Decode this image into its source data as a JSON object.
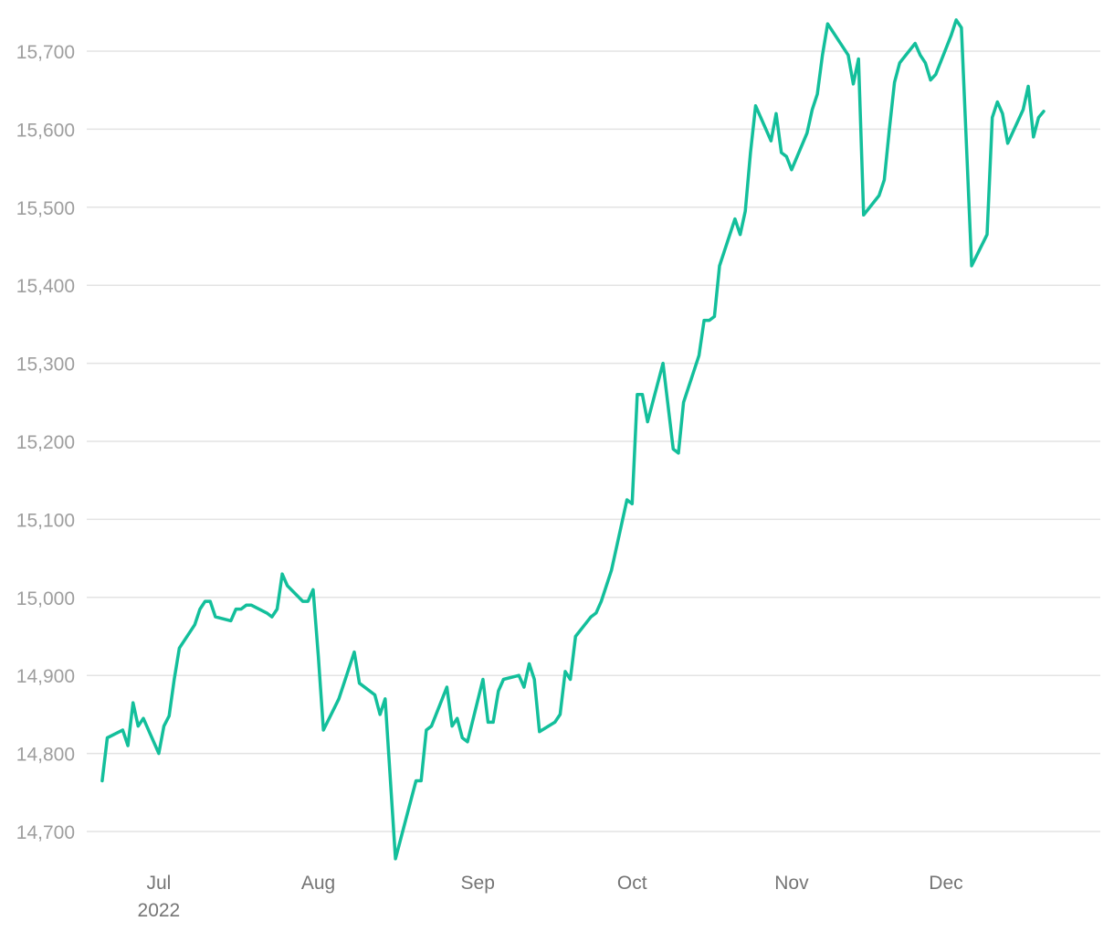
{
  "chart_data": {
    "type": "line",
    "title": "",
    "xlabel": "",
    "ylabel": "",
    "x_ticks": [
      {
        "date": "2022-07-01",
        "label": "Jul",
        "sublabel": "2022"
      },
      {
        "date": "2022-08-01",
        "label": "Aug",
        "sublabel": ""
      },
      {
        "date": "2022-09-01",
        "label": "Sep",
        "sublabel": ""
      },
      {
        "date": "2022-10-01",
        "label": "Oct",
        "sublabel": ""
      },
      {
        "date": "2022-11-01",
        "label": "Nov",
        "sublabel": ""
      },
      {
        "date": "2022-12-01",
        "label": "Dec",
        "sublabel": ""
      }
    ],
    "y_ticks": [
      14700,
      14800,
      14900,
      15000,
      15100,
      15200,
      15300,
      15400,
      15500,
      15600,
      15700
    ],
    "y_tick_labels": [
      "14,700",
      "14,800",
      "14,900",
      "15,000",
      "15,100",
      "15,200",
      "15,300",
      "15,400",
      "15,500",
      "15,600",
      "15,700"
    ],
    "xlim": [
      "2022-06-17",
      "2022-12-31"
    ],
    "ylim": [
      14650,
      15750
    ],
    "grid": true,
    "legend": "none",
    "colors": {
      "line": "#13bf9b"
    },
    "series": [
      {
        "points": [
          [
            "2022-06-20",
            14765
          ],
          [
            "2022-06-21",
            14820
          ],
          [
            "2022-06-24",
            14830
          ],
          [
            "2022-06-25",
            14810
          ],
          [
            "2022-06-26",
            14865
          ],
          [
            "2022-06-27",
            14835
          ],
          [
            "2022-06-28",
            14845
          ],
          [
            "2022-07-01",
            14800
          ],
          [
            "2022-07-02",
            14835
          ],
          [
            "2022-07-03",
            14848
          ],
          [
            "2022-07-04",
            14895
          ],
          [
            "2022-07-05",
            14935
          ],
          [
            "2022-07-08",
            14965
          ],
          [
            "2022-07-09",
            14985
          ],
          [
            "2022-07-10",
            14995
          ],
          [
            "2022-07-11",
            14995
          ],
          [
            "2022-07-12",
            14975
          ],
          [
            "2022-07-15",
            14970
          ],
          [
            "2022-07-16",
            14985
          ],
          [
            "2022-07-17",
            14985
          ],
          [
            "2022-07-18",
            14990
          ],
          [
            "2022-07-19",
            14990
          ],
          [
            "2022-07-22",
            14980
          ],
          [
            "2022-07-23",
            14975
          ],
          [
            "2022-07-24",
            14985
          ],
          [
            "2022-07-25",
            15030
          ],
          [
            "2022-07-26",
            15015
          ],
          [
            "2022-07-29",
            14995
          ],
          [
            "2022-07-30",
            14995
          ],
          [
            "2022-07-31",
            15010
          ],
          [
            "2022-08-01",
            14925
          ],
          [
            "2022-08-02",
            14830
          ],
          [
            "2022-08-05",
            14870
          ],
          [
            "2022-08-08",
            14930
          ],
          [
            "2022-08-09",
            14890
          ],
          [
            "2022-08-12",
            14875
          ],
          [
            "2022-08-13",
            14850
          ],
          [
            "2022-08-14",
            14870
          ],
          [
            "2022-08-16",
            14665
          ],
          [
            "2022-08-20",
            14765
          ],
          [
            "2022-08-21",
            14765
          ],
          [
            "2022-08-22",
            14830
          ],
          [
            "2022-08-23",
            14835
          ],
          [
            "2022-08-26",
            14885
          ],
          [
            "2022-08-27",
            14835
          ],
          [
            "2022-08-28",
            14845
          ],
          [
            "2022-08-29",
            14820
          ],
          [
            "2022-08-30",
            14815
          ],
          [
            "2022-09-02",
            14895
          ],
          [
            "2022-09-03",
            14840
          ],
          [
            "2022-09-04",
            14840
          ],
          [
            "2022-09-05",
            14880
          ],
          [
            "2022-09-06",
            14895
          ],
          [
            "2022-09-09",
            14900
          ],
          [
            "2022-09-10",
            14885
          ],
          [
            "2022-09-11",
            14915
          ],
          [
            "2022-09-12",
            14895
          ],
          [
            "2022-09-13",
            14828
          ],
          [
            "2022-09-16",
            14840
          ],
          [
            "2022-09-17",
            14850
          ],
          [
            "2022-09-18",
            14905
          ],
          [
            "2022-09-19",
            14895
          ],
          [
            "2022-09-20",
            14950
          ],
          [
            "2022-09-23",
            14975
          ],
          [
            "2022-09-24",
            14980
          ],
          [
            "2022-09-25",
            14995
          ],
          [
            "2022-09-27",
            15035
          ],
          [
            "2022-09-30",
            15125
          ],
          [
            "2022-10-01",
            15120
          ],
          [
            "2022-10-02",
            15260
          ],
          [
            "2022-10-03",
            15260
          ],
          [
            "2022-10-04",
            15225
          ],
          [
            "2022-10-07",
            15300
          ],
          [
            "2022-10-09",
            15190
          ],
          [
            "2022-10-10",
            15185
          ],
          [
            "2022-10-11",
            15250
          ],
          [
            "2022-10-14",
            15310
          ],
          [
            "2022-10-15",
            15355
          ],
          [
            "2022-10-16",
            15355
          ],
          [
            "2022-10-17",
            15360
          ],
          [
            "2022-10-18",
            15425
          ],
          [
            "2022-10-21",
            15485
          ],
          [
            "2022-10-22",
            15465
          ],
          [
            "2022-10-23",
            15495
          ],
          [
            "2022-10-24",
            15570
          ],
          [
            "2022-10-25",
            15630
          ],
          [
            "2022-10-28",
            15585
          ],
          [
            "2022-10-29",
            15620
          ],
          [
            "2022-10-30",
            15570
          ],
          [
            "2022-10-31",
            15565
          ],
          [
            "2022-11-01",
            15548
          ],
          [
            "2022-11-04",
            15595
          ],
          [
            "2022-11-05",
            15625
          ],
          [
            "2022-11-06",
            15645
          ],
          [
            "2022-11-07",
            15695
          ],
          [
            "2022-11-08",
            15735
          ],
          [
            "2022-11-12",
            15695
          ],
          [
            "2022-11-13",
            15658
          ],
          [
            "2022-11-14",
            15690
          ],
          [
            "2022-11-15",
            15490
          ],
          [
            "2022-11-18",
            15515
          ],
          [
            "2022-11-19",
            15535
          ],
          [
            "2022-11-20",
            15600
          ],
          [
            "2022-11-21",
            15660
          ],
          [
            "2022-11-22",
            15685
          ],
          [
            "2022-11-25",
            15710
          ],
          [
            "2022-11-26",
            15695
          ],
          [
            "2022-11-27",
            15685
          ],
          [
            "2022-11-28",
            15663
          ],
          [
            "2022-11-29",
            15670
          ],
          [
            "2022-12-02",
            15720
          ],
          [
            "2022-12-03",
            15740
          ],
          [
            "2022-12-04",
            15730
          ],
          [
            "2022-12-06",
            15425
          ],
          [
            "2022-12-09",
            15465
          ],
          [
            "2022-12-10",
            15615
          ],
          [
            "2022-12-11",
            15635
          ],
          [
            "2022-12-12",
            15620
          ],
          [
            "2022-12-13",
            15582
          ],
          [
            "2022-12-16",
            15625
          ],
          [
            "2022-12-17",
            15655
          ],
          [
            "2022-12-18",
            15590
          ],
          [
            "2022-12-19",
            15615
          ],
          [
            "2022-12-20",
            15623
          ]
        ]
      }
    ]
  }
}
